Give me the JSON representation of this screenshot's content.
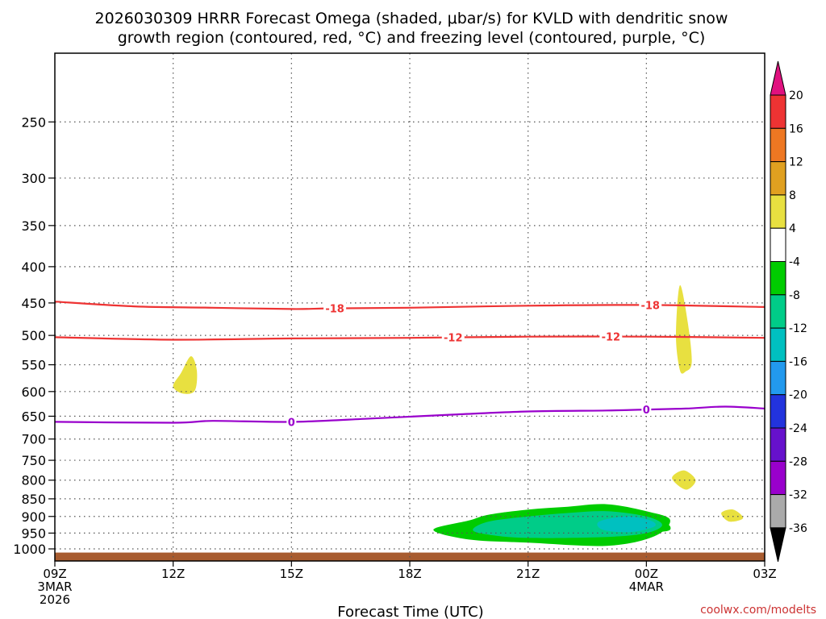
{
  "chart_data": {
    "type": "time-height cross-section",
    "title_line1": "2026030309 HRRR Forecast Omega (shaded, μbar/s) for KVLD with dendritic snow",
    "title_line2": "growth region (contoured, red, °C) and freezing level (contoured, purple, °C)",
    "xlabel": "Forecast Time (UTC)",
    "credit": "coolwx.com/modelts",
    "x_range_hours": [
      0,
      18
    ],
    "y_axis": {
      "scale": "log",
      "top_hpa": 200,
      "bottom_hpa": 1040,
      "grid": true
    },
    "x_ticks": [
      {
        "hour": 0,
        "label": "09Z",
        "sub1": "3MAR",
        "sub2": "2026"
      },
      {
        "hour": 3,
        "label": "12Z",
        "sub1": "",
        "sub2": ""
      },
      {
        "hour": 6,
        "label": "15Z",
        "sub1": "",
        "sub2": ""
      },
      {
        "hour": 9,
        "label": "18Z",
        "sub1": "",
        "sub2": ""
      },
      {
        "hour": 12,
        "label": "21Z",
        "sub1": "",
        "sub2": ""
      },
      {
        "hour": 15,
        "label": "00Z",
        "sub1": "4MAR",
        "sub2": ""
      },
      {
        "hour": 18,
        "label": "03Z",
        "sub1": "",
        "sub2": ""
      }
    ],
    "y_ticks": [
      {
        "p": 250,
        "label": "250"
      },
      {
        "p": 300,
        "label": "300"
      },
      {
        "p": 350,
        "label": "350"
      },
      {
        "p": 400,
        "label": "400"
      },
      {
        "p": 450,
        "label": "450"
      },
      {
        "p": 500,
        "label": "500"
      },
      {
        "p": 550,
        "label": "550"
      },
      {
        "p": 600,
        "label": "600"
      },
      {
        "p": 650,
        "label": "650"
      },
      {
        "p": 700,
        "label": "700"
      },
      {
        "p": 750,
        "label": "750"
      },
      {
        "p": 800,
        "label": "800"
      },
      {
        "p": 850,
        "label": "850"
      },
      {
        "p": 900,
        "label": "900"
      },
      {
        "p": 950,
        "label": "950"
      },
      {
        "p": 1000,
        "label": "1000"
      }
    ],
    "contours": [
      {
        "name": "dgz-minus18",
        "value": -18,
        "label": "-18",
        "color": "#ee3333",
        "points": [
          [
            0,
            448
          ],
          [
            2,
            455
          ],
          [
            4,
            457
          ],
          [
            6,
            459
          ],
          [
            7,
            458
          ],
          [
            9,
            457
          ],
          [
            12,
            454
          ],
          [
            15,
            453
          ],
          [
            18,
            456
          ]
        ],
        "label_hours": [
          7.1,
          15.1
        ]
      },
      {
        "name": "dgz-minus12",
        "value": -12,
        "label": "-12",
        "color": "#ee3333",
        "points": [
          [
            0,
            503
          ],
          [
            3,
            507
          ],
          [
            6,
            505
          ],
          [
            9,
            504
          ],
          [
            12,
            502
          ],
          [
            15,
            502
          ],
          [
            18,
            504
          ]
        ],
        "label_hours": [
          10.1,
          14.1
        ]
      },
      {
        "name": "freezing-level",
        "value": 0,
        "label": "0",
        "color": "#9900cc",
        "points": [
          [
            0,
            662
          ],
          [
            3,
            664
          ],
          [
            4,
            660
          ],
          [
            6,
            662
          ],
          [
            8,
            655
          ],
          [
            10,
            647
          ],
          [
            12,
            640
          ],
          [
            14,
            638
          ],
          [
            15,
            636
          ],
          [
            16,
            634
          ],
          [
            17,
            630
          ],
          [
            18,
            634
          ]
        ],
        "label_hours": [
          6,
          15
        ]
      }
    ],
    "omega_regions": [
      {
        "name": "omega-pos-4-8-a",
        "color": "#e8e040",
        "points": [
          [
            3.0,
            590
          ],
          [
            3.2,
            565
          ],
          [
            3.45,
            535
          ],
          [
            3.6,
            560
          ],
          [
            3.55,
            598
          ],
          [
            3.25,
            604
          ]
        ]
      },
      {
        "name": "omega-pos-4-8-b",
        "color": "#e8e040",
        "points": [
          [
            15.85,
            560
          ],
          [
            15.75,
            500
          ],
          [
            15.85,
            425
          ],
          [
            16.05,
            480
          ],
          [
            16.15,
            545
          ],
          [
            16.0,
            562
          ]
        ]
      },
      {
        "name": "omega-pos-4-8-c",
        "color": "#e8e040",
        "points": [
          [
            15.65,
            795
          ],
          [
            15.95,
            775
          ],
          [
            16.25,
            800
          ],
          [
            16.0,
            825
          ]
        ]
      },
      {
        "name": "omega-pos-4-8-d",
        "color": "#e8e040",
        "points": [
          [
            16.9,
            890
          ],
          [
            17.2,
            880
          ],
          [
            17.45,
            905
          ],
          [
            17.1,
            915
          ]
        ]
      },
      {
        "name": "omega-neg-4-8-main",
        "color": "#00cc00",
        "points": [
          [
            9.6,
            940
          ],
          [
            10.5,
            912
          ],
          [
            11,
            895
          ],
          [
            12,
            880
          ],
          [
            13,
            872
          ],
          [
            14,
            865
          ],
          [
            15,
            885
          ],
          [
            15.6,
            910
          ],
          [
            15.2,
            960
          ],
          [
            14,
            990
          ],
          [
            12,
            980
          ],
          [
            10.5,
            970
          ]
        ]
      },
      {
        "name": "omega-neg-4-8-small",
        "color": "#00cc00",
        "points": [
          [
            14.9,
            928
          ],
          [
            15.5,
            922
          ],
          [
            15.6,
            940
          ],
          [
            15.3,
            945
          ]
        ]
      },
      {
        "name": "omega-neg-8-12",
        "color": "#00cc88",
        "points": [
          [
            10.6,
            940
          ],
          [
            11,
            915
          ],
          [
            12,
            900
          ],
          [
            13,
            890
          ],
          [
            14,
            885
          ],
          [
            15,
            900
          ],
          [
            15.4,
            925
          ],
          [
            15,
            950
          ],
          [
            14,
            962
          ],
          [
            12,
            965
          ],
          [
            11,
            955
          ]
        ]
      },
      {
        "name": "omega-neg-12-16",
        "color": "#00c0c0",
        "points": [
          [
            13.8,
            915
          ],
          [
            14.5,
            900
          ],
          [
            15.1,
            912
          ],
          [
            15.2,
            930
          ],
          [
            14.6,
            947
          ],
          [
            13.9,
            940
          ]
        ]
      }
    ],
    "ground": {
      "color": "#a85c30",
      "top_hpa": 1012
    },
    "colorbar": {
      "levels": [
        "20",
        "16",
        "12",
        "8",
        "4",
        "-4",
        "-8",
        "-12",
        "-16",
        "-20",
        "-24",
        "-28",
        "-32",
        "-36"
      ],
      "top_arrow_color": "#e0117f",
      "bottom_arrow_color": "#000000",
      "colors": [
        "#ee3333",
        "#ee7722",
        "#e0a020",
        "#e8e040",
        "#ffffff",
        "#00cc00",
        "#00cc88",
        "#00c0c0",
        "#2299ee",
        "#2233dd",
        "#6611cc",
        "#9900cc",
        "#aaaaaa"
      ]
    }
  }
}
